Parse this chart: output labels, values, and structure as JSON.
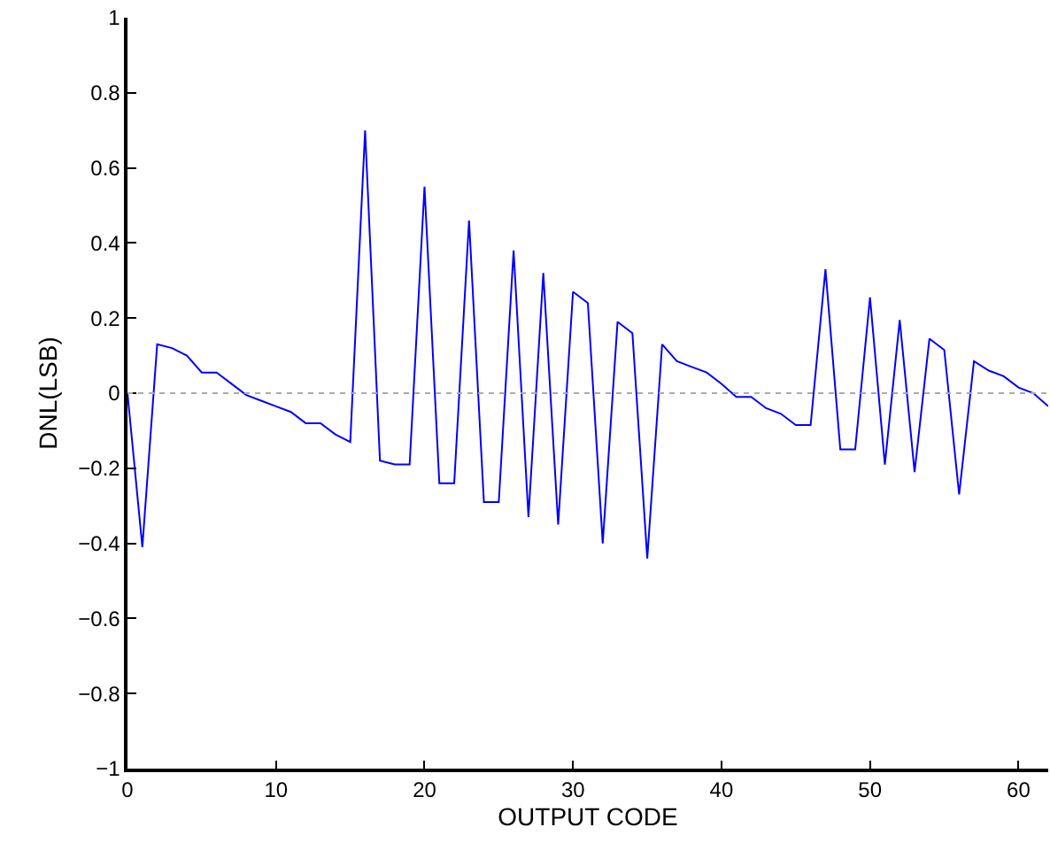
{
  "chart_data": {
    "type": "line",
    "xlabel": "OUTPUT CODE",
    "ylabel": "DNL(LSB)",
    "x": [
      0,
      1,
      2,
      3,
      4,
      5,
      6,
      7,
      8,
      9,
      10,
      11,
      12,
      13,
      14,
      15,
      16,
      17,
      18,
      19,
      20,
      21,
      22,
      23,
      24,
      25,
      26,
      27,
      28,
      29,
      30,
      31,
      32,
      33,
      34,
      35,
      36,
      37,
      38,
      39,
      40,
      41,
      42,
      43,
      44,
      45,
      46,
      47,
      48,
      49,
      50,
      51,
      52,
      53,
      54,
      55,
      56,
      57,
      58,
      59,
      60,
      61,
      62
    ],
    "series": [
      {
        "color": "#0000ff",
        "values": [
          0,
          -0.41,
          0.13,
          0.12,
          0.1,
          0.055,
          0.055,
          0.025,
          -0.005,
          -0.02,
          -0.035,
          -0.05,
          -0.08,
          -0.08,
          -0.11,
          -0.13,
          0.7,
          -0.18,
          -0.19,
          -0.19,
          0.55,
          -0.24,
          -0.24,
          0.46,
          -0.29,
          -0.29,
          0.38,
          -0.33,
          0.32,
          -0.35,
          0.27,
          0.24,
          -0.4,
          0.19,
          0.16,
          -0.44,
          0.13,
          0.085,
          0.07,
          0.055,
          0.025,
          -0.01,
          -0.01,
          -0.04,
          -0.055,
          -0.085,
          -0.085,
          0.33,
          -0.15,
          -0.15,
          0.255,
          -0.19,
          0.195,
          -0.21,
          0.145,
          0.115,
          -0.27,
          0.085,
          0.06,
          0.045,
          0.015,
          0,
          -0.035
        ]
      }
    ],
    "xlim": [
      0,
      62
    ],
    "xticks": [
      0,
      10,
      20,
      30,
      40,
      50,
      60
    ],
    "ylim": [
      -1,
      1
    ],
    "yticks": [
      -1,
      -0.8,
      -0.6,
      -0.4,
      -0.2,
      0,
      0.2,
      0.4,
      0.6,
      0.8,
      1
    ],
    "ref_lines": [
      {
        "axis": "y",
        "value": 0,
        "color": "#aaaaaa",
        "line_style": "dotted"
      }
    ],
    "grid": false,
    "marker": "none",
    "line_style": "solid"
  }
}
